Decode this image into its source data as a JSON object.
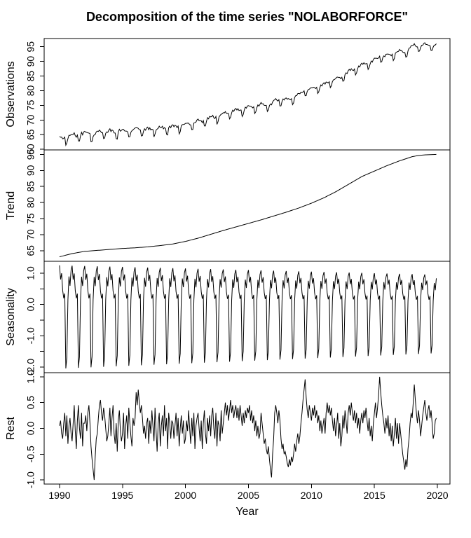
{
  "title": "Decomposition of the time series \"NOLABORFORCE\"",
  "xlabel": "Year",
  "line_color": "#000000",
  "chart_data": {
    "type": "line",
    "description": "Seasonal-trend decomposition of monthly series NOLABORFORCE, Jan 1990 - Dec 2019; observations = trend + seasonality + rest",
    "start_year": 1990,
    "frequency": 12,
    "n_points": 360,
    "x_axis": {
      "label": "Year",
      "ticks": [
        1990,
        1995,
        2000,
        2005,
        2010,
        2015,
        2020
      ],
      "tick_labels": [
        "1990",
        "1995",
        "2000",
        "2005",
        "2010",
        "2015",
        "2020"
      ],
      "range": [
        1988.78,
        2021.0
      ]
    },
    "panels": [
      {
        "id": "observations",
        "ylabel": "Observations",
        "series": "observations",
        "ylim": [
          59.8,
          97.8
        ],
        "tick_values": [
          60,
          65,
          70,
          75,
          80,
          85,
          90,
          95
        ],
        "tick_labels": [
          "60",
          "65",
          "70",
          "75",
          "80",
          "85",
          "90",
          "95"
        ]
      },
      {
        "id": "trend",
        "ylabel": "Trend",
        "series": "trend",
        "ylim": [
          61.7,
          96.4
        ],
        "tick_values": [
          65,
          70,
          75,
          80,
          85,
          90,
          95
        ],
        "tick_labels": [
          "65",
          "70",
          "75",
          "80",
          "85",
          "90",
          "95"
        ]
      },
      {
        "id": "seasonality",
        "ylabel": "Seasonality",
        "series": "seasonality",
        "ylim": [
          -2.18,
          1.38
        ],
        "tick_values": [
          1.0,
          0.5,
          0.0,
          -0.5,
          -1.0,
          -1.5,
          -2.0
        ],
        "tick_labels": [
          "1.0",
          "",
          "0.0",
          "",
          "-1.0",
          "",
          "-2.0"
        ]
      },
      {
        "id": "rest",
        "ylabel": "Rest",
        "series": "rest",
        "ylim": [
          -1.08,
          1.08
        ],
        "tick_values": [
          1.0,
          0.5,
          0.0,
          -0.5,
          -1.0
        ],
        "tick_labels": [
          "1.0",
          "0.5",
          "0.0",
          "-0.5",
          "-1.0"
        ]
      }
    ],
    "trend_anchors": {
      "years": [
        1990,
        1991,
        1992,
        1993,
        1994,
        1995,
        1996,
        1997,
        1998,
        1999,
        2000,
        2001,
        2002,
        2003,
        2004,
        2005,
        2006,
        2007,
        2008,
        2009,
        2010,
        2011,
        2012,
        2013,
        2014,
        2015,
        2016,
        2017,
        2018,
        2018.5,
        2019,
        2019.92
      ],
      "values": [
        63.1,
        64.1,
        64.8,
        65.1,
        65.4,
        65.7,
        65.9,
        66.2,
        66.6,
        67.1,
        67.9,
        68.9,
        70.1,
        71.3,
        72.4,
        73.5,
        74.6,
        75.8,
        77.0,
        78.3,
        79.8,
        81.5,
        83.5,
        85.8,
        88.1,
        89.8,
        91.5,
        93.0,
        94.3,
        94.65,
        94.85,
        95.0
      ]
    },
    "seasonal": {
      "monthly_pattern": [
        1.25,
        0.8,
        1.0,
        0.45,
        0.2,
        0.35,
        -2.05,
        -1.7,
        0.15,
        0.9,
        0.6,
        1.1
      ],
      "amplitude_start": 1.0,
      "amplitude_end": 0.76
    },
    "rest_values": [
      0.05,
      0.15,
      -0.1,
      -0.2,
      0.1,
      0.3,
      -0.15,
      0.25,
      -0.3,
      0.05,
      0.2,
      -0.1,
      -0.25,
      0.1,
      0.45,
      -0.05,
      -0.4,
      0.15,
      0.45,
      0.0,
      -0.2,
      0.3,
      -0.35,
      0.1,
      0.1,
      0.25,
      -0.05,
      0.3,
      0.45,
      0.1,
      -0.35,
      -0.6,
      -0.8,
      -1.0,
      -0.55,
      -0.2,
      -0.1,
      0.2,
      0.45,
      0.55,
      0.3,
      0.15,
      0.4,
      0.25,
      0.0,
      -0.25,
      -0.15,
      0.1,
      0.4,
      -0.15,
      0.2,
      0.45,
      -0.1,
      -0.3,
      0.1,
      -0.45,
      0.15,
      0.35,
      -0.05,
      -0.25,
      -0.1,
      0.3,
      -0.4,
      0.05,
      0.25,
      -0.2,
      0.4,
      0.1,
      -0.15,
      -0.35,
      0.2,
      0.05,
      0.2,
      0.7,
      0.45,
      0.75,
      0.5,
      0.3,
      0.45,
      0.2,
      -0.1,
      0.05,
      -0.2,
      0.1,
      0.2,
      -0.3,
      0.15,
      -0.1,
      0.35,
      0.05,
      -0.25,
      0.4,
      -0.05,
      -0.45,
      0.1,
      0.3,
      -0.35,
      0.05,
      0.25,
      -0.15,
      0.45,
      -0.05,
      0.2,
      -0.4,
      0.3,
      0.1,
      -0.2,
      0.15,
      0.1,
      -0.2,
      0.05,
      0.3,
      -0.15,
      0.2,
      -0.35,
      0.0,
      0.25,
      -0.1,
      0.15,
      -0.3,
      -0.2,
      0.15,
      -0.05,
      0.35,
      0.0,
      -0.3,
      0.2,
      -0.15,
      0.3,
      -0.4,
      0.05,
      0.2,
      0.3,
      0.0,
      -0.25,
      0.15,
      -0.4,
      0.1,
      0.35,
      -0.1,
      -0.3,
      0.2,
      -0.05,
      0.25,
      -0.15,
      0.25,
      0.4,
      0.0,
      -0.2,
      0.3,
      -0.35,
      0.15,
      0.05,
      -0.25,
      0.35,
      -0.1,
      0.1,
      0.3,
      0.5,
      0.25,
      0.45,
      0.15,
      0.35,
      0.55,
      0.3,
      0.45,
      0.2,
      0.35,
      0.45,
      0.2,
      0.4,
      0.15,
      0.45,
      0.25,
      0.05,
      0.3,
      0.1,
      0.35,
      0.2,
      0.4,
      0.3,
      0.45,
      0.15,
      0.35,
      0.1,
      0.25,
      -0.05,
      0.15,
      -0.15,
      0.05,
      -0.2,
      -0.1,
      0.3,
      0.1,
      -0.1,
      -0.3,
      -0.2,
      -0.4,
      -0.5,
      -0.35,
      -0.6,
      -0.8,
      -0.95,
      -0.5,
      -0.2,
      0.3,
      0.45,
      0.3,
      0.1,
      0.35,
      0.15,
      -0.2,
      -0.4,
      -0.3,
      -0.5,
      -0.45,
      -0.55,
      -0.68,
      -0.75,
      -0.6,
      -0.72,
      -0.55,
      -0.65,
      -0.5,
      -0.3,
      -0.45,
      -0.25,
      -0.1,
      -0.3,
      -0.15,
      0.1,
      0.3,
      0.55,
      0.75,
      0.95,
      0.6,
      0.35,
      0.2,
      0.45,
      0.3,
      0.15,
      0.4,
      0.25,
      0.45,
      0.2,
      0.35,
      0.1,
      0.25,
      -0.05,
      0.15,
      -0.1,
      0.05,
      0.2,
      -0.1,
      0.3,
      0.5,
      0.3,
      0.45,
      0.25,
      0.4,
      0.15,
      -0.05,
      0.2,
      -0.15,
      0.05,
      0.3,
      -0.2,
      0.1,
      -0.35,
      -0.15,
      0.25,
      0.0,
      0.35,
      0.15,
      -0.1,
      0.3,
      0.45,
      0.25,
      0.5,
      0.3,
      0.15,
      0.35,
      0.1,
      0.3,
      0.0,
      0.2,
      -0.1,
      0.15,
      0.3,
      0.1,
      0.35,
      0.2,
      0.4,
      0.15,
      -0.05,
      0.2,
      -0.15,
      0.05,
      -0.25,
      0.1,
      0.3,
      0.5,
      0.2,
      0.4,
      0.65,
      1.0,
      0.7,
      0.45,
      0.25,
      0.1,
      -0.1,
      0.2,
      0.0,
      0.25,
      -0.15,
      0.1,
      -0.25,
      0.05,
      -0.35,
      -0.1,
      0.2,
      -0.2,
      0.1,
      -0.3,
      0.1,
      -0.1,
      -0.3,
      -0.5,
      -0.65,
      -0.8,
      -0.6,
      -0.75,
      -0.4,
      -0.2,
      0.1,
      0.3,
      0.2,
      0.5,
      0.85,
      0.55,
      0.3,
      0.1,
      0.35,
      0.15,
      -0.15,
      0.05,
      0.25,
      0.4,
      0.55,
      0.3,
      0.15,
      0.35,
      0.45,
      0.2,
      0.35,
      0.1,
      -0.2,
      -0.1,
      0.15,
      0.2
    ]
  }
}
